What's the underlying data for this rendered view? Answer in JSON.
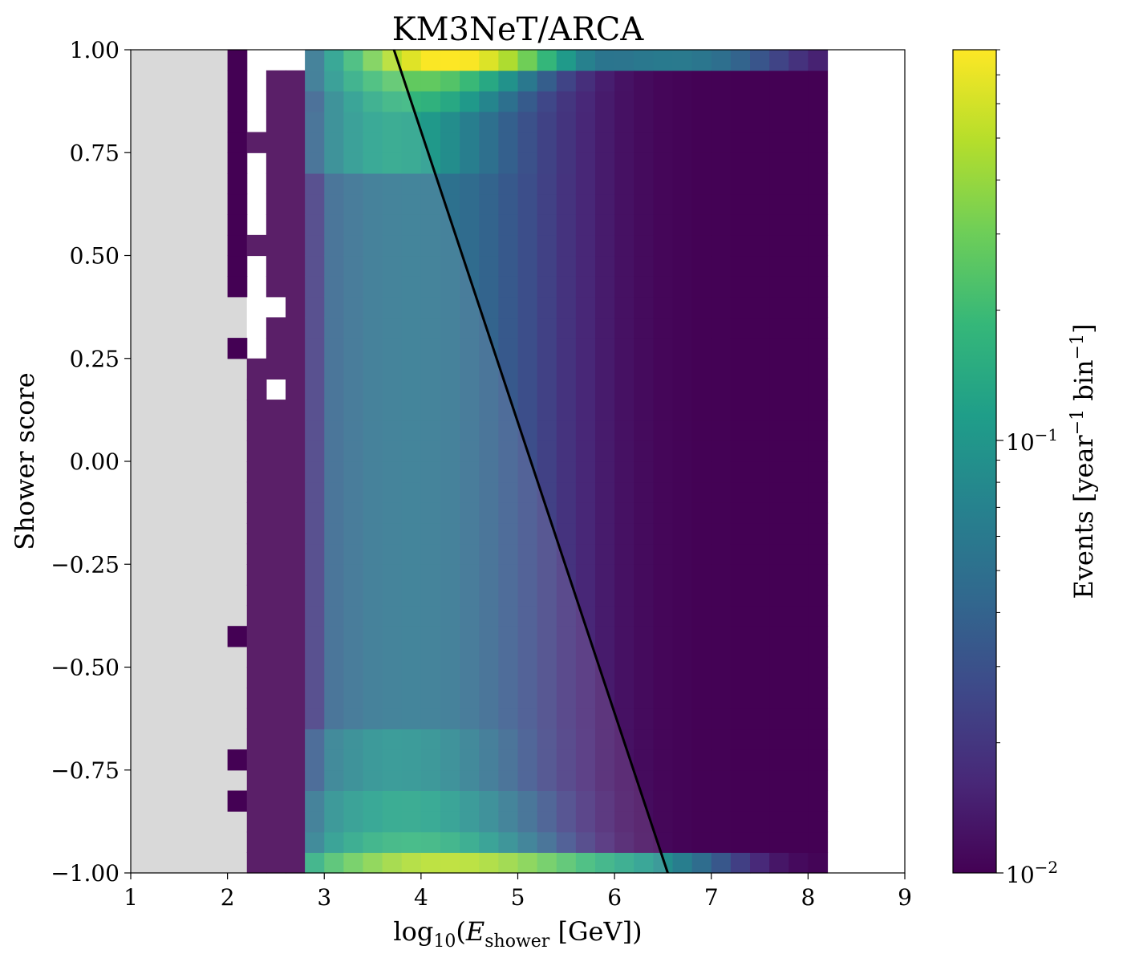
{
  "chart_data": {
    "type": "heatmap",
    "title": "KM3NeT/ARCA",
    "xlabel": "log10(E_shower [GeV])",
    "xlabel_parts": {
      "func": "log",
      "sub1": "10",
      "open": "(",
      "var": "E",
      "sub2": "shower",
      "unit": " [GeV])"
    },
    "ylabel": "Shower score",
    "colorbar_label": "Events [year⁻¹ bin⁻¹]",
    "colorbar_label_parts": {
      "pre": "Events [year",
      "sup1": "−1",
      "mid": " bin",
      "sup2": "−1",
      "post": "]"
    },
    "colorbar_scale": "log",
    "colorbar_range": [
      0.01,
      0.8
    ],
    "colorbar_ticks": [
      {
        "value": 0.01,
        "base": "10",
        "exp": "−2"
      },
      {
        "value": 0.1,
        "base": "10",
        "exp": "−1"
      }
    ],
    "colormap": "viridis",
    "xlim": [
      1,
      9
    ],
    "ylim": [
      -1,
      1
    ],
    "x_ticks": [
      "1",
      "2",
      "3",
      "4",
      "5",
      "6",
      "7",
      "8",
      "9"
    ],
    "y_ticks": [
      "1.00",
      "0.75",
      "0.50",
      "0.25",
      "0.00",
      "−0.25",
      "−0.50",
      "−0.75",
      "−1.00"
    ],
    "x_bins": {
      "start": 1,
      "end": 9,
      "width": 0.2
    },
    "y_bins": {
      "start": -1,
      "end": 1,
      "width": 0.05
    },
    "grey_region": {
      "x_from": 1,
      "x_to": 2.2,
      "color": "#d9d9d9"
    },
    "missing_color": "#ffffff",
    "cut_line": {
      "x1": 3.72,
      "y1": 1.0,
      "x2": 6.55,
      "y2": -1.0,
      "color": "#000000"
    },
    "shaded_region": "below-left of cut line, lightened",
    "missing_cells": [
      [
        2.0,
        0.35
      ],
      [
        2.0,
        0.3
      ],
      [
        2.0,
        0.2
      ],
      [
        2.0,
        0.15
      ],
      [
        2.0,
        0.1
      ],
      [
        2.0,
        0.05
      ],
      [
        2.0,
        0.0
      ],
      [
        2.0,
        -0.05
      ],
      [
        2.0,
        -0.1
      ],
      [
        2.0,
        -0.15
      ],
      [
        2.0,
        -0.2
      ],
      [
        2.0,
        -0.25
      ],
      [
        2.0,
        -0.3
      ],
      [
        2.0,
        -0.35
      ],
      [
        2.0,
        -0.4
      ],
      [
        2.0,
        -0.5
      ],
      [
        2.0,
        -0.55
      ],
      [
        2.0,
        -0.6
      ],
      [
        2.0,
        -0.65
      ],
      [
        2.0,
        -0.7
      ],
      [
        2.0,
        -0.8
      ],
      [
        2.0,
        -0.9
      ],
      [
        2.0,
        -0.95
      ],
      [
        2.0,
        -1.0
      ],
      [
        2.2,
        0.95
      ],
      [
        2.2,
        0.9
      ],
      [
        2.2,
        0.85
      ],
      [
        2.2,
        0.8
      ],
      [
        2.2,
        0.7
      ],
      [
        2.2,
        0.65
      ],
      [
        2.2,
        0.6
      ],
      [
        2.2,
        0.55
      ],
      [
        2.2,
        0.45
      ],
      [
        2.2,
        0.4
      ],
      [
        2.2,
        0.35
      ],
      [
        2.2,
        0.3
      ],
      [
        2.2,
        0.25
      ],
      [
        2.4,
        0.95
      ],
      [
        2.4,
        0.35
      ],
      [
        2.4,
        0.15
      ],
      [
        2.6,
        0.95
      ]
    ]
  }
}
